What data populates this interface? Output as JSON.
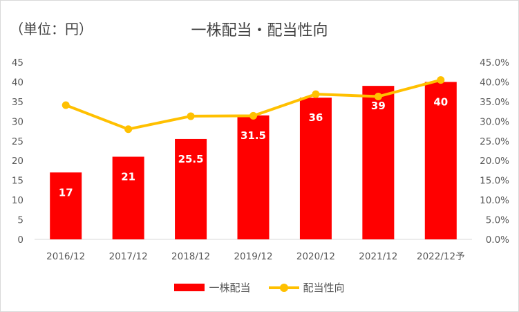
{
  "chart_data": {
    "type": "bar",
    "unit_label": "（単位：円）",
    "title": "一株配当・配当性向",
    "categories": [
      "2016/12",
      "2017/12",
      "2018/12",
      "2019/12",
      "2020/12",
      "2021/12",
      "2022/12予"
    ],
    "series": [
      {
        "name": "一株配当",
        "type": "bar",
        "axis": "left",
        "color": "#ff0000",
        "values": [
          17,
          21,
          25.5,
          31.5,
          36,
          39,
          40
        ],
        "data_labels": [
          "17",
          "21",
          "25.5",
          "31.5",
          "36",
          "39",
          "40"
        ]
      },
      {
        "name": "配当性向",
        "type": "line",
        "axis": "right",
        "color": "#ffc000",
        "values": [
          34.1,
          28.0,
          31.3,
          31.4,
          36.9,
          36.3,
          40.5
        ]
      }
    ],
    "left_axis": {
      "min": 0,
      "max": 45,
      "step": 5,
      "ticks": [
        "0",
        "5",
        "10",
        "15",
        "20",
        "25",
        "30",
        "35",
        "40",
        "45"
      ]
    },
    "right_axis": {
      "min": 0,
      "max": 45,
      "step": 5,
      "ticks": [
        "0.0%",
        "5.0%",
        "10.0%",
        "15.0%",
        "20.0%",
        "25.0%",
        "30.0%",
        "35.0%",
        "40.0%",
        "45.0%"
      ]
    },
    "grid": false,
    "legend_position": "bottom"
  }
}
